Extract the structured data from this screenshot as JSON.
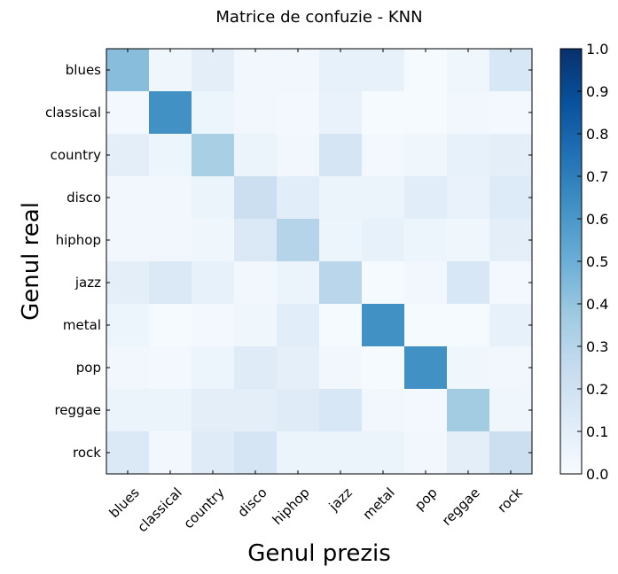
{
  "chart_data": {
    "type": "heatmap",
    "title": "Matrice de confuzie - KNN",
    "xlabel": "Genul prezis",
    "ylabel": "Genul real",
    "x_categories": [
      "blues",
      "classical",
      "country",
      "disco",
      "hiphop",
      "jazz",
      "metal",
      "pop",
      "reggae",
      "rock"
    ],
    "y_categories": [
      "blues",
      "classical",
      "country",
      "disco",
      "hiphop",
      "jazz",
      "metal",
      "pop",
      "reggae",
      "rock"
    ],
    "values": [
      [
        0.43,
        0.04,
        0.1,
        0.03,
        0.03,
        0.08,
        0.08,
        0.01,
        0.04,
        0.16
      ],
      [
        0.02,
        0.63,
        0.05,
        0.03,
        0.02,
        0.07,
        0.01,
        0.01,
        0.03,
        0.02
      ],
      [
        0.1,
        0.05,
        0.34,
        0.06,
        0.03,
        0.17,
        0.02,
        0.04,
        0.08,
        0.1
      ],
      [
        0.03,
        0.03,
        0.06,
        0.22,
        0.11,
        0.06,
        0.06,
        0.11,
        0.07,
        0.13
      ],
      [
        0.03,
        0.03,
        0.04,
        0.14,
        0.3,
        0.05,
        0.08,
        0.05,
        0.04,
        0.1
      ],
      [
        0.1,
        0.14,
        0.08,
        0.03,
        0.06,
        0.29,
        0.01,
        0.03,
        0.16,
        0.02
      ],
      [
        0.05,
        0.01,
        0.02,
        0.04,
        0.11,
        0.01,
        0.63,
        0.01,
        0.01,
        0.08
      ],
      [
        0.03,
        0.02,
        0.05,
        0.12,
        0.09,
        0.03,
        0.01,
        0.63,
        0.04,
        0.03
      ],
      [
        0.06,
        0.06,
        0.1,
        0.1,
        0.12,
        0.16,
        0.03,
        0.02,
        0.36,
        0.04
      ],
      [
        0.14,
        0.03,
        0.12,
        0.17,
        0.06,
        0.06,
        0.06,
        0.03,
        0.1,
        0.22
      ]
    ],
    "colorbar": {
      "range": [
        0.0,
        1.0
      ],
      "ticks": [
        "0.0",
        "0.1",
        "0.2",
        "0.3",
        "0.4",
        "0.5",
        "0.6",
        "0.7",
        "0.8",
        "0.9",
        "1.0"
      ],
      "colormap": "Blues"
    },
    "grid": false
  }
}
